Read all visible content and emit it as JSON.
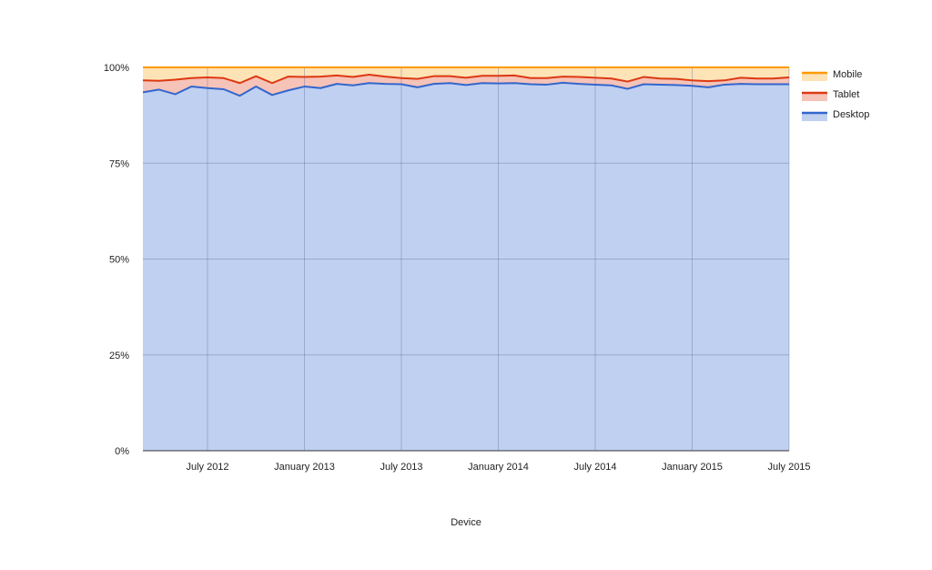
{
  "chart_data": {
    "type": "area",
    "stacked": true,
    "xlabel": "Device",
    "ylim": [
      0,
      100
    ],
    "yticks": [
      "0%",
      "25%",
      "50%",
      "75%",
      "100%"
    ],
    "xtick_labels": [
      "July 2012",
      "January 2013",
      "July 2013",
      "January 2014",
      "July 2014",
      "January 2015",
      "July 2015"
    ],
    "x": [
      "2012-03",
      "2012-04",
      "2012-05",
      "2012-06",
      "2012-07",
      "2012-08",
      "2012-09",
      "2012-10",
      "2012-11",
      "2012-12",
      "2013-01",
      "2013-02",
      "2013-03",
      "2013-04",
      "2013-05",
      "2013-06",
      "2013-07",
      "2013-08",
      "2013-09",
      "2013-10",
      "2013-11",
      "2013-12",
      "2014-01",
      "2014-02",
      "2014-03",
      "2014-04",
      "2014-05",
      "2014-06",
      "2014-07",
      "2014-08",
      "2014-09",
      "2014-10",
      "2014-11",
      "2014-12",
      "2015-01",
      "2015-02",
      "2015-03",
      "2015-04",
      "2015-05",
      "2015-06",
      "2015-07"
    ],
    "series": [
      {
        "name": "Desktop",
        "color": "#3366cc",
        "fill": "#c0d0f0",
        "values": [
          93.5,
          94.2,
          93.0,
          95.0,
          94.6,
          94.3,
          92.6,
          95.0,
          92.8,
          94.0,
          95.0,
          94.6,
          95.7,
          95.3,
          95.9,
          95.7,
          95.6,
          94.8,
          95.7,
          95.9,
          95.4,
          95.9,
          95.8,
          95.9,
          95.6,
          95.5,
          96.0,
          95.7,
          95.5,
          95.3,
          94.4,
          95.6,
          95.5,
          95.4,
          95.2,
          94.8,
          95.5,
          95.7,
          95.6,
          95.6,
          95.6
        ]
      },
      {
        "name": "Tablet",
        "color": "#dc3912",
        "fill": "#f6c3b8",
        "values": [
          3.1,
          2.3,
          3.8,
          2.2,
          2.8,
          2.9,
          3.3,
          2.7,
          3.1,
          3.6,
          2.5,
          3.0,
          2.2,
          2.2,
          2.2,
          1.9,
          1.6,
          2.2,
          2.0,
          1.8,
          1.9,
          1.9,
          2.0,
          2.0,
          1.6,
          1.7,
          1.6,
          1.8,
          1.8,
          1.8,
          1.9,
          1.9,
          1.6,
          1.6,
          1.4,
          1.6,
          1.1,
          1.6,
          1.5,
          1.5,
          1.8
        ]
      },
      {
        "name": "Mobile",
        "color": "#ff9900",
        "fill": "#fde3b6",
        "values": [
          3.4,
          3.5,
          3.2,
          2.8,
          2.6,
          2.8,
          4.1,
          2.3,
          4.1,
          2.4,
          2.5,
          2.4,
          2.1,
          2.5,
          1.9,
          2.4,
          2.8,
          3.0,
          2.3,
          2.3,
          2.7,
          2.2,
          2.2,
          2.1,
          2.8,
          2.8,
          2.4,
          2.5,
          2.7,
          2.9,
          3.7,
          2.5,
          2.9,
          3.0,
          3.4,
          3.6,
          3.4,
          2.7,
          2.9,
          2.9,
          2.6
        ]
      }
    ],
    "legend_position": "right",
    "grid": true
  }
}
